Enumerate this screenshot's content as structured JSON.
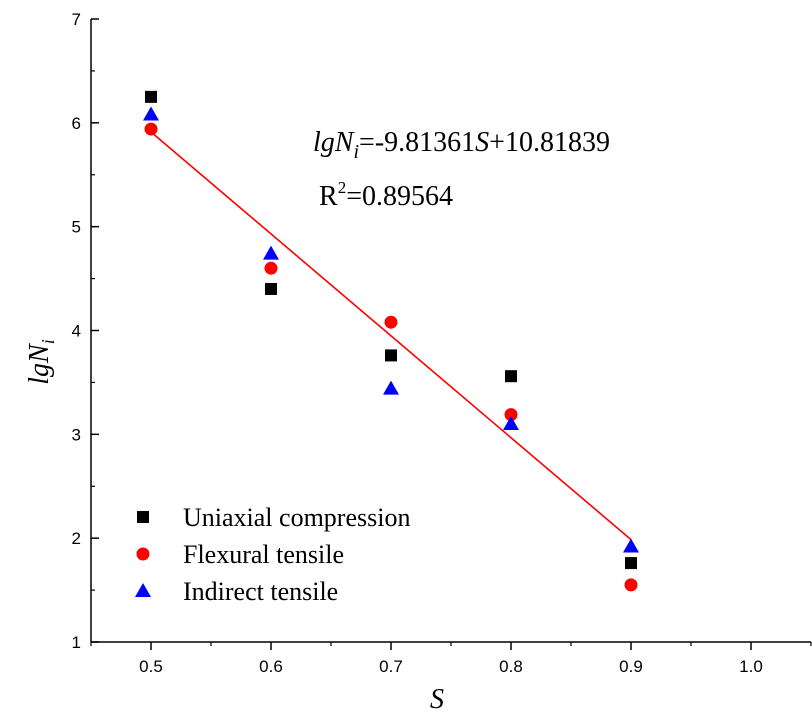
{
  "chart_data": {
    "type": "scatter",
    "xlabel": "S",
    "ylabel": {
      "base": "lgN",
      "sub": "i"
    },
    "xlim": [
      0.45,
      1.05
    ],
    "ylim": [
      1,
      7
    ],
    "xticks": [
      "0.5",
      "0.6",
      "0.7",
      "0.8",
      "0.9",
      "1.0"
    ],
    "yticks": [
      "1",
      "2",
      "3",
      "4",
      "5",
      "6",
      "7"
    ],
    "grid": false,
    "legend_position": "bottom-left",
    "series": [
      {
        "name": "Uniaxial compression",
        "marker": "square",
        "color": "#000000",
        "x": [
          0.5,
          0.6,
          0.7,
          0.8,
          0.9
        ],
        "y": [
          6.25,
          4.4,
          3.76,
          3.56,
          1.76
        ]
      },
      {
        "name": "Flexural tensile",
        "marker": "circle",
        "color": "#ff0000",
        "x": [
          0.5,
          0.6,
          0.7,
          0.8,
          0.9
        ],
        "y": [
          5.94,
          4.6,
          4.08,
          3.19,
          1.55
        ]
      },
      {
        "name": "Indirect tensile",
        "marker": "triangle",
        "color": "#0000ff",
        "x": [
          0.5,
          0.6,
          0.7,
          0.8,
          0.9
        ],
        "y": [
          6.08,
          4.74,
          3.44,
          3.1,
          1.92
        ]
      }
    ],
    "fit": {
      "color": "#ff0000",
      "slope": -9.81361,
      "intercept": 10.81839,
      "x_range": [
        0.5,
        0.9
      ]
    },
    "annotations": {
      "equation": {
        "lead": "lgN",
        "sub": "i",
        "mid": "=-9.81361",
        "var": "S",
        "tail": "+10.81839"
      },
      "r2": {
        "lead": "R",
        "sup": "2",
        "tail": "=0.89564"
      }
    }
  }
}
